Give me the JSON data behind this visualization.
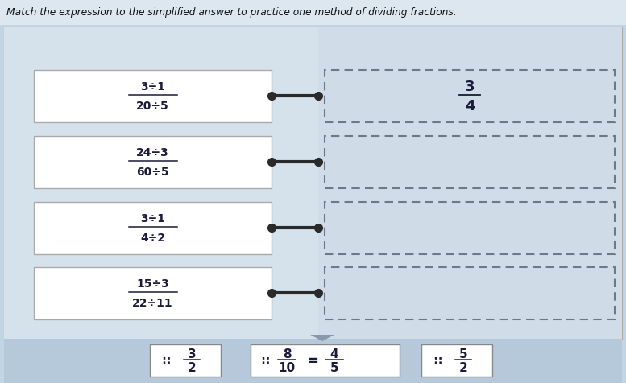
{
  "title": "Match the expression to the simplified answer to practice one method of dividing fractions.",
  "outer_bg": "#c2d5e5",
  "panel_bg": "#cfdde9",
  "left_bg": "#d5e2ec",
  "right_bg": "#d0dce8",
  "bottom_bg": "#b5c9db",
  "left_expressions": [
    {
      "top": "3÷1",
      "bottom": "20÷5"
    },
    {
      "top": "24÷3",
      "bottom": "60÷5"
    },
    {
      "top": "3÷1",
      "bottom": "4÷2"
    },
    {
      "top": "15÷3",
      "bottom": "22÷11"
    }
  ],
  "box_fill": "#ffffff",
  "box_edge": "#aaaaaa",
  "right_fill": "#cfdce8",
  "dashed_edge": "#6a7a8a",
  "connector_color": "#2a2a2a",
  "text_color": "#1a1a3a",
  "answer_num": "3",
  "answer_den": "4",
  "tri_color": "#8899aa"
}
